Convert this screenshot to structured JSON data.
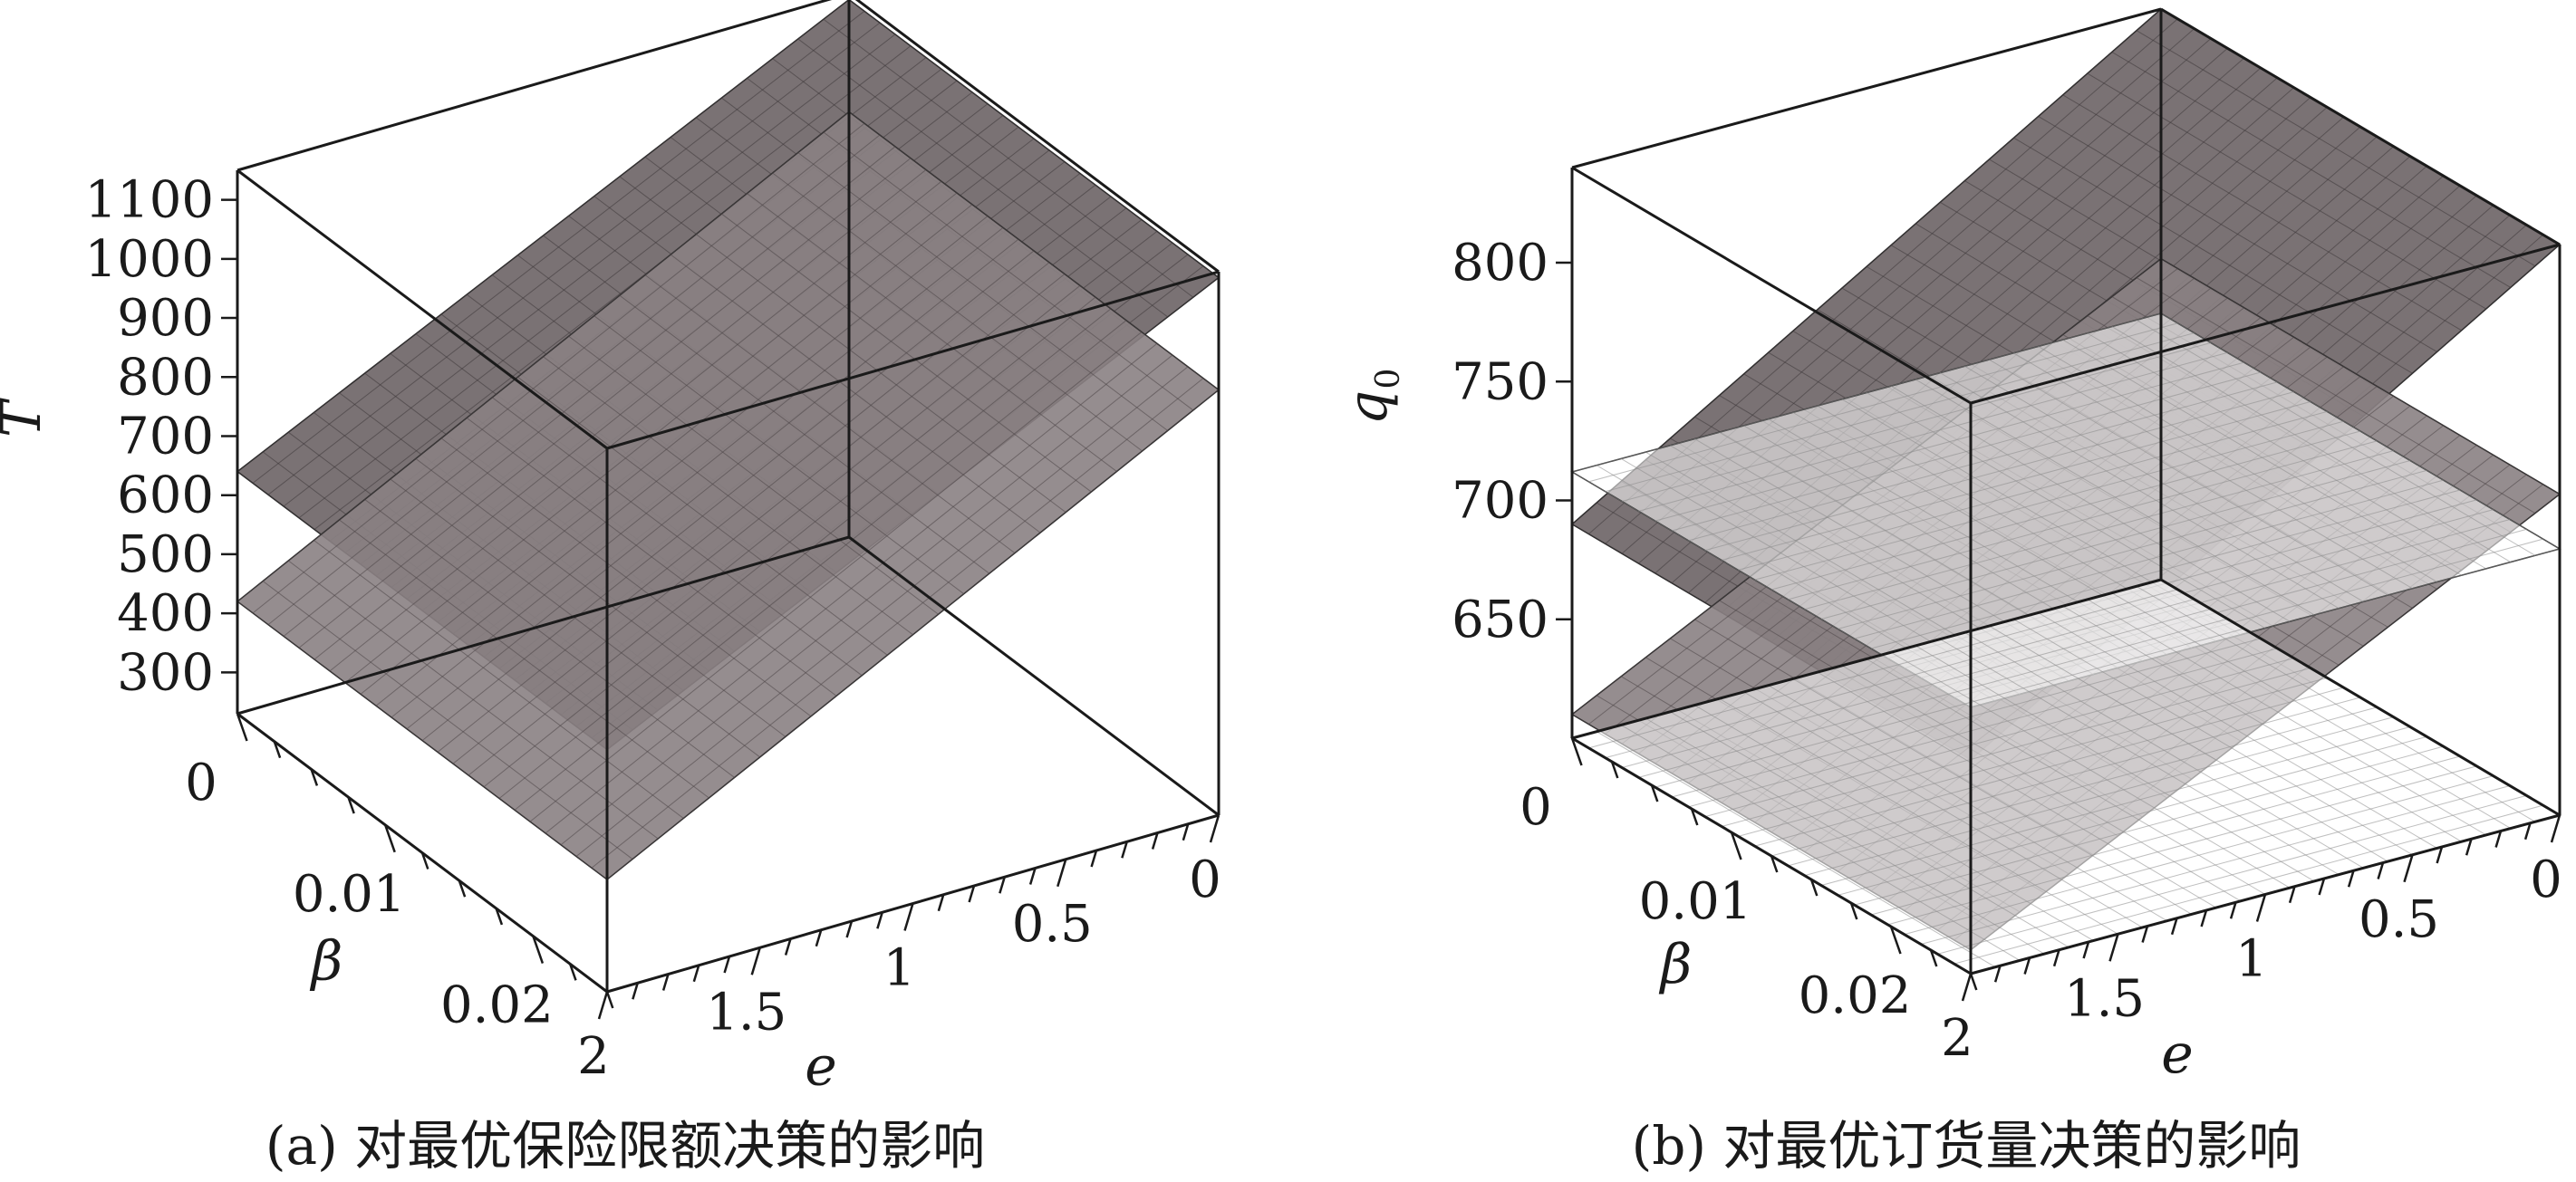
{
  "chart_data": [
    {
      "type": "surface3d",
      "caption": "(a) 对最优保险限额决策的影响",
      "zlabel": "T",
      "xlabel": "β",
      "ylabel": "e",
      "z_ticks": [
        "1100",
        "1000",
        "900",
        "800",
        "700",
        "600",
        "500",
        "400",
        "300"
      ],
      "x_ticks": [
        "0",
        "0.01",
        "0.02"
      ],
      "y_ticks": [
        "0",
        "0.5",
        "1",
        "1.5",
        "2"
      ],
      "zlim": [
        230,
        1150
      ],
      "xlim": [
        0,
        0.025
      ],
      "ylim": [
        0,
        2
      ],
      "surfaces": [
        {
          "corners": {
            "b0_e0": 1140,
            "b0_e2": 640,
            "bmax_e0": 1140,
            "bmax_e2": 640
          },
          "shade": "dark"
        },
        {
          "corners": {
            "b0_e0": 950,
            "b0_e2": 420,
            "bmax_e0": 950,
            "bmax_e2": 420
          },
          "shade": "mid"
        }
      ]
    },
    {
      "type": "surface3d",
      "caption": "(b) 对最优订货量决策的影响",
      "zlabel": "q",
      "zlabel_sub": "0",
      "xlabel": "β",
      "ylabel": "e",
      "z_ticks": [
        "800",
        "750",
        "700",
        "650"
      ],
      "x_ticks": [
        "0",
        "0.01",
        "0.02"
      ],
      "y_ticks": [
        "0",
        "0.5",
        "1",
        "1.5",
        "2"
      ],
      "zlim": [
        600,
        840
      ],
      "xlim": [
        0,
        0.025
      ],
      "ylim": [
        0,
        2
      ],
      "surfaces": [
        {
          "corners": {
            "b0_e0": 840,
            "b0_e2": 690,
            "bmax_e0": 840,
            "bmax_e2": 690
          },
          "shade": "dark"
        },
        {
          "corners": {
            "b0_e0": 735,
            "b0_e2": 610,
            "bmax_e0": 735,
            "bmax_e2": 610
          },
          "shade": "mid"
        },
        {
          "corners": {
            "b0_e0": 712,
            "b0_e2": 712,
            "bmax_e0": 712,
            "bmax_e2": 712
          },
          "shade": "mesh"
        },
        {
          "corners": {
            "b0_e0": 600,
            "b0_e2": 600,
            "bmax_e0": 600,
            "bmax_e2": 600
          },
          "shade": "mesh"
        }
      ]
    }
  ]
}
